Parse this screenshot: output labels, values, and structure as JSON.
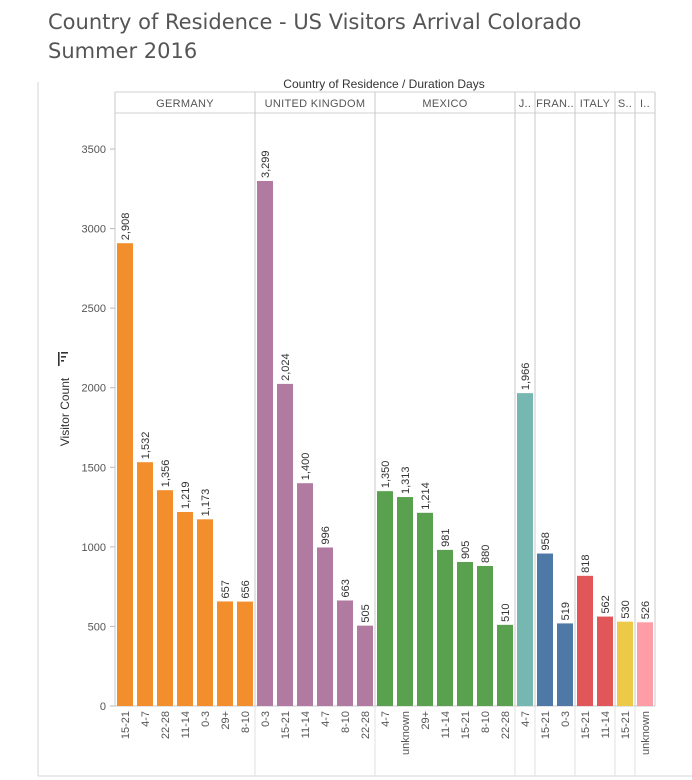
{
  "page": {
    "title_line1": "Country of Residence - US Visitors Arrival Colorado",
    "title_line2": "Summer 2016"
  },
  "colors": {
    "GERMANY": "#f28e2b",
    "UNITED KINGDOM": "#b07aa1",
    "MEXICO": "#59a14f",
    "J..": "#76b7b2",
    "FRAN..": "#4e79a7",
    "ITALY": "#e15759",
    "S..": "#edc948",
    "I..": "#ff9da7"
  },
  "chart_data": {
    "type": "bar",
    "xlabel": "Country of Residence  /  Duration Days",
    "ylabel": "Visitor Count",
    "ylim": [
      0,
      3500
    ],
    "yticks": [
      0,
      500,
      1000,
      1500,
      2000,
      2500,
      3000,
      3500
    ],
    "grid": false,
    "groups": [
      {
        "name": "GERMANY",
        "categories": [
          "15-21",
          "4-7",
          "22-28",
          "11-14",
          "0-3",
          "29+",
          "8-10"
        ],
        "values": [
          2908,
          1532,
          1356,
          1219,
          1173,
          657,
          656
        ],
        "labels": [
          "2,908",
          "1,532",
          "1,356",
          "1,219",
          "1,173",
          "657",
          "656"
        ]
      },
      {
        "name": "UNITED KINGDOM",
        "categories": [
          "0-3",
          "15-21",
          "11-14",
          "4-7",
          "8-10",
          "22-28"
        ],
        "values": [
          3299,
          2024,
          1400,
          996,
          663,
          505
        ],
        "labels": [
          "3,299",
          "2,024",
          "1,400",
          "996",
          "663",
          "505"
        ]
      },
      {
        "name": "MEXICO",
        "categories": [
          "4-7",
          "unknown",
          "29+",
          "11-14",
          "15-21",
          "8-10",
          "22-28"
        ],
        "values": [
          1350,
          1313,
          1214,
          981,
          905,
          880,
          510
        ],
        "labels": [
          "1,350",
          "1,313",
          "1,214",
          "981",
          "905",
          "880",
          "510"
        ]
      },
      {
        "name": "J..",
        "categories": [
          "4-7"
        ],
        "values": [
          1966
        ],
        "labels": [
          "1,966"
        ]
      },
      {
        "name": "FRAN..",
        "categories": [
          "15-21",
          "0-3"
        ],
        "values": [
          958,
          519
        ],
        "labels": [
          "958",
          "519"
        ]
      },
      {
        "name": "ITALY",
        "categories": [
          "15-21",
          "11-14"
        ],
        "values": [
          818,
          562
        ],
        "labels": [
          "818",
          "562"
        ]
      },
      {
        "name": "S..",
        "categories": [
          "15-21"
        ],
        "values": [
          530
        ],
        "labels": [
          "530"
        ]
      },
      {
        "name": "I..",
        "categories": [
          "unknown"
        ],
        "values": [
          526
        ],
        "labels": [
          "526"
        ]
      }
    ]
  }
}
